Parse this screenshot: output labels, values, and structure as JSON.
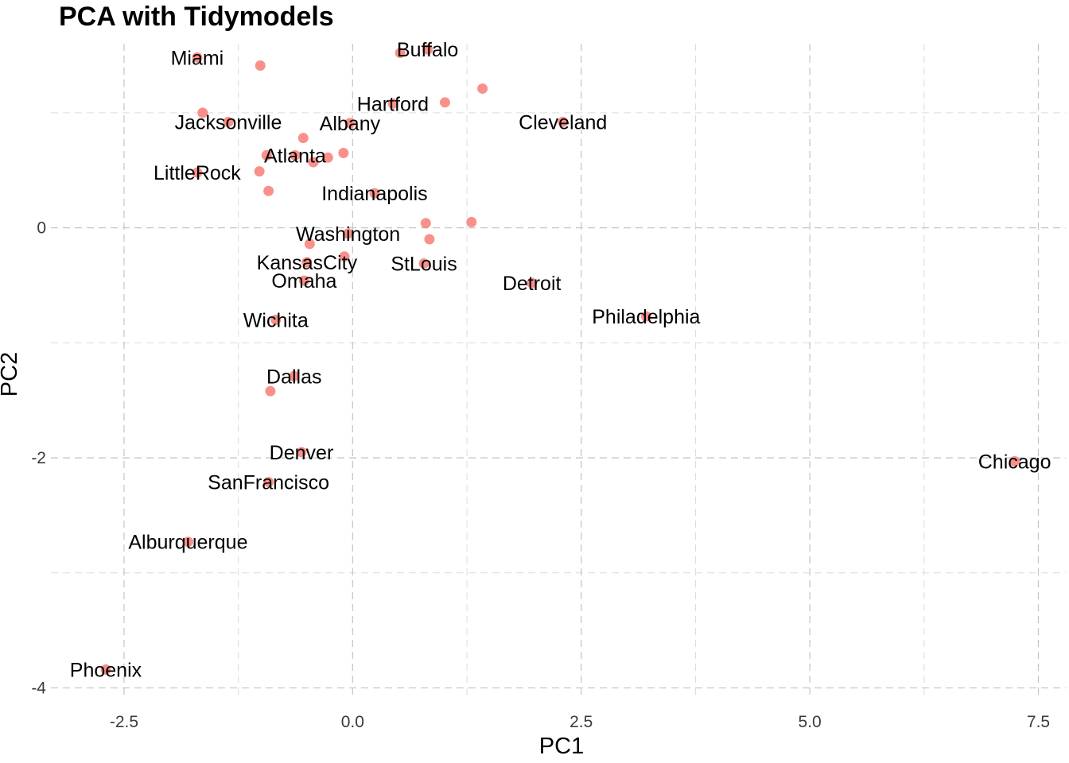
{
  "chart_data": {
    "type": "scatter",
    "title": "PCA with Tidymodels",
    "xlabel": "PC1",
    "ylabel": "PC2",
    "xlim": [
      -3.3,
      7.8
    ],
    "ylim": [
      -4.1,
      1.6
    ],
    "x_ticks": [
      -2.5,
      0.0,
      2.5,
      5.0,
      7.5
    ],
    "x_tick_labels": [
      "-2.5",
      "0.0",
      "2.5",
      "5.0",
      "7.5"
    ],
    "y_ticks": [
      -4,
      -2,
      0
    ],
    "y_tick_labels": [
      "-4",
      "-2",
      "0"
    ],
    "x_minor_ticks": [
      -1.25,
      1.25,
      3.75,
      6.25
    ],
    "y_minor_ticks": [
      -3,
      -1,
      1
    ],
    "grid": true,
    "point_color": "#f8766d",
    "points": [
      {
        "x": -2.7,
        "y": -3.84,
        "label": "Phoenix"
      },
      {
        "x": -1.8,
        "y": -2.73,
        "label": "Alburquerque"
      },
      {
        "x": -0.92,
        "y": -2.21,
        "label": "SanFrancisco"
      },
      {
        "x": -0.56,
        "y": -1.95,
        "label": "Denver"
      },
      {
        "x": -0.9,
        "y": -1.42,
        "label": ""
      },
      {
        "x": -0.64,
        "y": -1.29,
        "label": "Dallas"
      },
      {
        "x": -0.84,
        "y": -0.8,
        "label": "Wichita"
      },
      {
        "x": -0.53,
        "y": -0.46,
        "label": "Omaha"
      },
      {
        "x": -0.5,
        "y": -0.3,
        "label": "KansasCity"
      },
      {
        "x": -0.09,
        "y": -0.25,
        "label": ""
      },
      {
        "x": -0.47,
        "y": -0.14,
        "label": ""
      },
      {
        "x": -0.05,
        "y": -0.05,
        "label": "Washington"
      },
      {
        "x": 0.78,
        "y": -0.31,
        "label": "StLouis"
      },
      {
        "x": 0.84,
        "y": -0.1,
        "label": ""
      },
      {
        "x": 0.8,
        "y": 0.04,
        "label": ""
      },
      {
        "x": 1.3,
        "y": 0.05,
        "label": ""
      },
      {
        "x": 1.96,
        "y": -0.48,
        "label": "Detroit"
      },
      {
        "x": 3.21,
        "y": -0.77,
        "label": "Philadelphia"
      },
      {
        "x": 7.24,
        "y": -2.03,
        "label": "Chicago"
      },
      {
        "x": 0.24,
        "y": 0.3,
        "label": "Indianapolis"
      },
      {
        "x": -0.92,
        "y": 0.32,
        "label": ""
      },
      {
        "x": -1.02,
        "y": 0.49,
        "label": ""
      },
      {
        "x": -1.7,
        "y": 0.48,
        "label": "LittleRock"
      },
      {
        "x": -0.43,
        "y": 0.57,
        "label": ""
      },
      {
        "x": -0.63,
        "y": 0.63,
        "label": "Atlanta"
      },
      {
        "x": -0.94,
        "y": 0.63,
        "label": ""
      },
      {
        "x": -0.27,
        "y": 0.61,
        "label": ""
      },
      {
        "x": -0.1,
        "y": 0.65,
        "label": ""
      },
      {
        "x": -0.54,
        "y": 0.78,
        "label": ""
      },
      {
        "x": -0.03,
        "y": 0.91,
        "label": "Albany"
      },
      {
        "x": -1.36,
        "y": 0.92,
        "label": "Jacksonville"
      },
      {
        "x": -1.64,
        "y": 1.0,
        "label": ""
      },
      {
        "x": 2.3,
        "y": 0.92,
        "label": "Cleveland"
      },
      {
        "x": 0.44,
        "y": 1.08,
        "label": "Hartford"
      },
      {
        "x": 1.01,
        "y": 1.09,
        "label": ""
      },
      {
        "x": 1.42,
        "y": 1.21,
        "label": ""
      },
      {
        "x": -1.7,
        "y": 1.48,
        "label": "Miami"
      },
      {
        "x": -1.01,
        "y": 1.41,
        "label": ""
      },
      {
        "x": 0.52,
        "y": 1.52,
        "label": ""
      },
      {
        "x": 0.82,
        "y": 1.55,
        "label": "Buffalo"
      }
    ]
  }
}
